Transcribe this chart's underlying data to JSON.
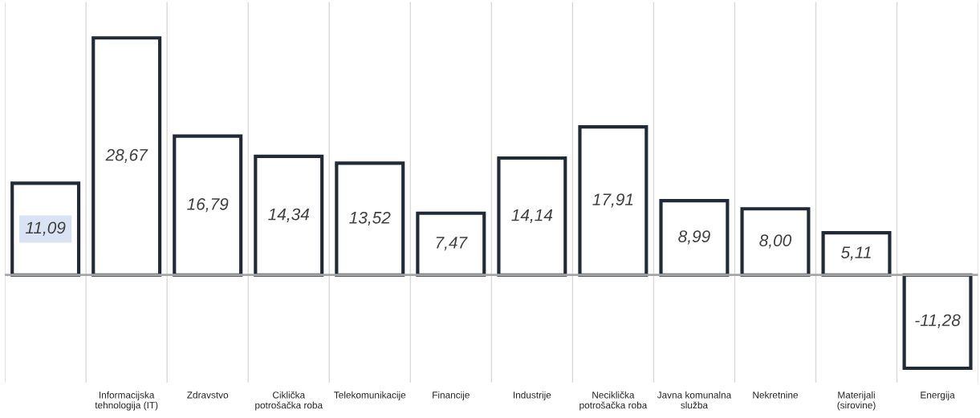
{
  "chart_data": {
    "type": "bar",
    "categories": [
      null,
      "Informacijska tehnologija (IT)",
      "Zdravstvo",
      "Ciklička potrošačka roba",
      "Telekomunikacije",
      "Financije",
      "Industrije",
      "Neciklička potrošačka roba",
      "Javna komunalna služba",
      "Nekretnine",
      "Materijali (sirovine)",
      "Energija"
    ],
    "values": [
      11.09,
      28.67,
      16.79,
      14.34,
      13.52,
      7.47,
      14.14,
      17.91,
      8.99,
      8.0,
      5.11,
      -11.28
    ],
    "value_labels": [
      "11,09",
      "28,67",
      "16,79",
      "14,34",
      "13,52",
      "7,47",
      "14,14",
      "17,91",
      "8,99",
      "8,00",
      "5,11",
      "-11,28"
    ],
    "color": "#222a35",
    "ylim": [
      -13,
      33
    ],
    "grid": "x",
    "tick_labels": "x",
    "legend": false
  }
}
